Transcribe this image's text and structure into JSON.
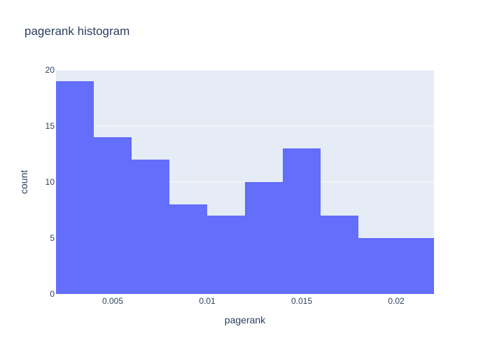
{
  "chart_data": {
    "type": "bar",
    "title": "pagerank histogram",
    "xlabel": "pagerank",
    "ylabel": "count",
    "bins": [
      {
        "x0": 0.002,
        "x1": 0.004,
        "count": 19
      },
      {
        "x0": 0.004,
        "x1": 0.006,
        "count": 14
      },
      {
        "x0": 0.006,
        "x1": 0.008,
        "count": 12
      },
      {
        "x0": 0.008,
        "x1": 0.01,
        "count": 8
      },
      {
        "x0": 0.01,
        "x1": 0.012,
        "count": 7
      },
      {
        "x0": 0.012,
        "x1": 0.014,
        "count": 10
      },
      {
        "x0": 0.014,
        "x1": 0.016,
        "count": 13
      },
      {
        "x0": 0.016,
        "x1": 0.018,
        "count": 7
      },
      {
        "x0": 0.018,
        "x1": 0.02,
        "count": 5
      },
      {
        "x0": 0.02,
        "x1": 0.022,
        "count": 5
      }
    ],
    "xlim": [
      0.002,
      0.022
    ],
    "ylim": [
      0,
      20
    ],
    "xticks": [
      {
        "value": 0.005,
        "label": "0.005"
      },
      {
        "value": 0.01,
        "label": "0.01"
      },
      {
        "value": 0.015,
        "label": "0.015"
      },
      {
        "value": 0.02,
        "label": "0.02"
      }
    ],
    "yticks": [
      {
        "value": 0,
        "label": "0"
      },
      {
        "value": 5,
        "label": "5"
      },
      {
        "value": 10,
        "label": "10"
      },
      {
        "value": 15,
        "label": "15"
      },
      {
        "value": 20,
        "label": "20"
      }
    ],
    "grid": true,
    "colors": {
      "bar": "#636efa",
      "plot_bg": "#e5ecf6",
      "grid": "#ffffff",
      "text": "#2a3f5f"
    }
  }
}
